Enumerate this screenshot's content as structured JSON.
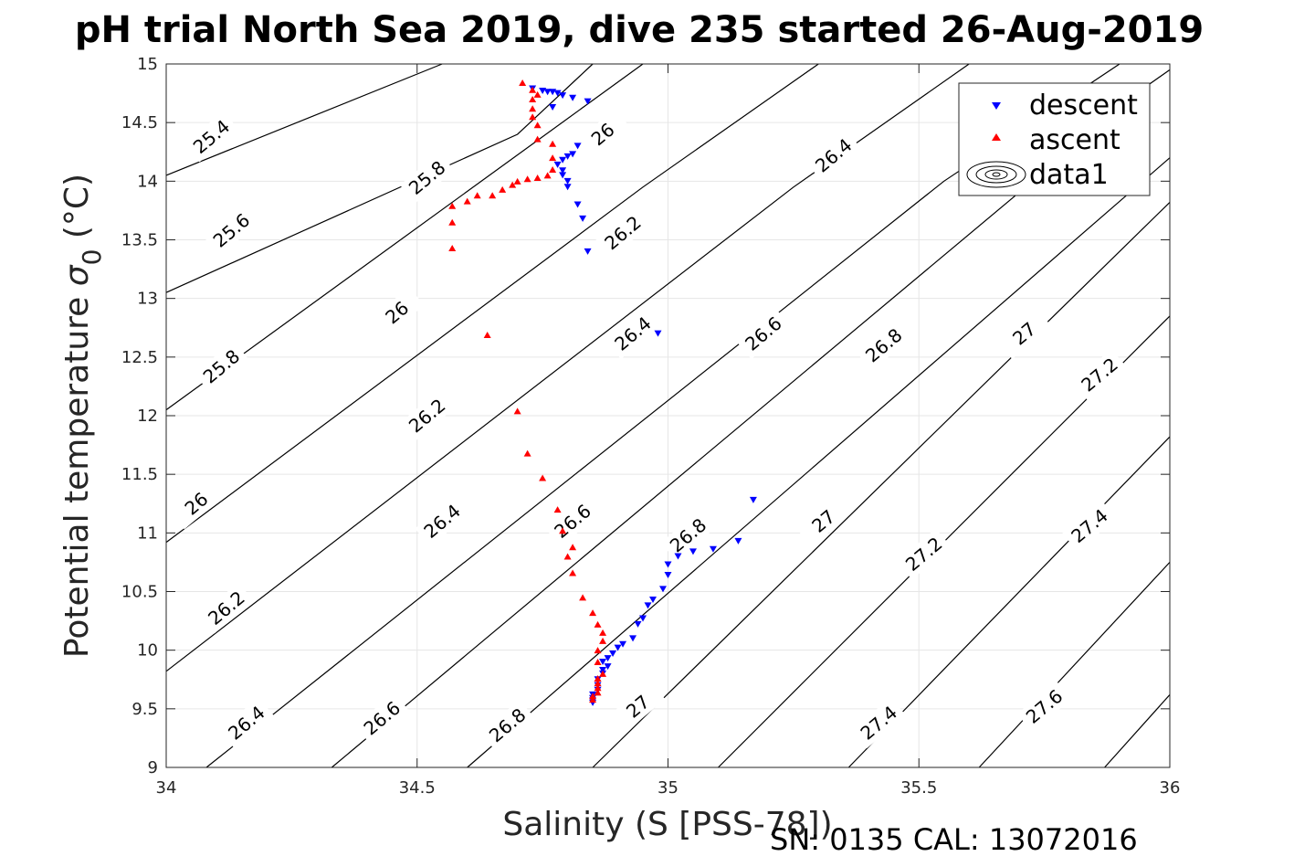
{
  "chart_data": {
    "type": "scatter",
    "title": "pH trial North Sea 2019, dive 235 started 26-Aug-2019",
    "xlabel": "Salinity (S [PSS-78])",
    "ylabel_prefix": "Potential temperature ",
    "ylabel_symbol": "σ",
    "ylabel_sub": "0",
    "ylabel_suffix": " (°C)",
    "footer": "SN: 0135  CAL: 13072016",
    "xlim": [
      34,
      36
    ],
    "ylim": [
      9,
      15
    ],
    "xticks": [
      34,
      34.5,
      35,
      35.5,
      36
    ],
    "xtick_labels": [
      "34",
      "34.5",
      "35",
      "35.5",
      "36"
    ],
    "yticks": [
      9,
      9.5,
      10,
      10.5,
      11,
      11.5,
      12,
      12.5,
      13,
      13.5,
      14,
      14.5,
      15
    ],
    "ytick_labels": [
      "9",
      "9.5",
      "10",
      "10.5",
      "11",
      "11.5",
      "12",
      "12.5",
      "13",
      "13.5",
      "14",
      "14.5",
      "15"
    ],
    "grid": true,
    "legend_position": "top-right",
    "legend": [
      {
        "label": "descent",
        "marker": "triangle-down",
        "color": "#0000ff"
      },
      {
        "label": "ascent",
        "marker": "triangle-up",
        "color": "#ff0000"
      },
      {
        "label": "data1",
        "marker": "contour",
        "color": "#000000"
      }
    ],
    "contours": {
      "color": "#000000",
      "lines": [
        {
          "level": "25.4",
          "points": [
            [
              34,
              14.05
            ],
            [
              34.55,
              15
            ]
          ]
        },
        {
          "level": "25.6",
          "points": [
            [
              34,
              13.05
            ],
            [
              34.7,
              14.4
            ],
            [
              34.85,
              15
            ]
          ]
        },
        {
          "level": "25.8",
          "points": [
            [
              34,
              12.05
            ],
            [
              34.95,
              15
            ]
          ]
        },
        {
          "level": "26",
          "points": [
            [
              34,
              10.92
            ],
            [
              34.95,
              13.95
            ],
            [
              35.3,
              15
            ]
          ]
        },
        {
          "level": "26.2",
          "points": [
            [
              34,
              9.82
            ],
            [
              35.25,
              13.95
            ],
            [
              35.6,
              15
            ]
          ]
        },
        {
          "level": "26.4",
          "points": [
            [
              34.08,
              9
            ],
            [
              35.55,
              14
            ],
            [
              35.9,
              15
            ]
          ]
        },
        {
          "level": "26.6",
          "points": [
            [
              34.33,
              9
            ],
            [
              35.95,
              14.8
            ],
            [
              36,
              14.95
            ]
          ]
        },
        {
          "level": "26.8",
          "points": [
            [
              34.6,
              9
            ],
            [
              36,
              14.2
            ]
          ]
        },
        {
          "level": "27",
          "points": [
            [
              34.85,
              9
            ],
            [
              36,
              13.82
            ]
          ]
        },
        {
          "level": "27.2",
          "points": [
            [
              35.1,
              9
            ],
            [
              36,
              12.85
            ]
          ]
        },
        {
          "level": "27.4",
          "points": [
            [
              35.36,
              9
            ],
            [
              36,
              11.82
            ]
          ]
        },
        {
          "level": "27.6",
          "points": [
            [
              35.62,
              9
            ],
            [
              36,
              10.75
            ]
          ]
        },
        {
          "level": "27.8",
          "points": [
            [
              35.87,
              9
            ],
            [
              36,
              9.62
            ]
          ]
        }
      ],
      "labels": [
        {
          "text": "25.4",
          "x": 34.09,
          "y": 14.38
        },
        {
          "text": "25.6",
          "x": 34.13,
          "y": 13.58
        },
        {
          "text": "25.8",
          "x": 34.52,
          "y": 14.03
        },
        {
          "text": "25.8",
          "x": 34.11,
          "y": 12.42
        },
        {
          "text": "26",
          "x": 34.87,
          "y": 14.4
        },
        {
          "text": "26",
          "x": 34.46,
          "y": 12.88
        },
        {
          "text": "26",
          "x": 34.06,
          "y": 11.25
        },
        {
          "text": "26.2",
          "x": 34.91,
          "y": 13.56
        },
        {
          "text": "26.2",
          "x": 34.52,
          "y": 12.0
        },
        {
          "text": "26.2",
          "x": 34.12,
          "y": 10.36
        },
        {
          "text": "26.4",
          "x": 35.33,
          "y": 14.22
        },
        {
          "text": "26.4",
          "x": 34.93,
          "y": 12.7
        },
        {
          "text": "26.4",
          "x": 34.55,
          "y": 11.1
        },
        {
          "text": "26.4",
          "x": 34.16,
          "y": 9.38
        },
        {
          "text": "26.6",
          "x": 35.19,
          "y": 12.7
        },
        {
          "text": "26.6",
          "x": 34.81,
          "y": 11.1
        },
        {
          "text": "26.6",
          "x": 34.43,
          "y": 9.42
        },
        {
          "text": "26.8",
          "x": 35.43,
          "y": 12.6
        },
        {
          "text": "26.8",
          "x": 35.04,
          "y": 10.98
        },
        {
          "text": "26.8",
          "x": 34.68,
          "y": 9.36
        },
        {
          "text": "27",
          "x": 35.71,
          "y": 12.7
        },
        {
          "text": "27",
          "x": 35.31,
          "y": 11.1
        },
        {
          "text": "27",
          "x": 34.94,
          "y": 9.52
        },
        {
          "text": "27.2",
          "x": 35.86,
          "y": 12.35
        },
        {
          "text": "27.2",
          "x": 35.51,
          "y": 10.82
        },
        {
          "text": "27.4",
          "x": 35.84,
          "y": 11.06
        },
        {
          "text": "27.4",
          "x": 35.42,
          "y": 9.38
        },
        {
          "text": "27.6",
          "x": 35.75,
          "y": 9.52
        }
      ]
    },
    "series": [
      {
        "name": "descent",
        "marker": "triangle-down",
        "color": "#0000ff",
        "points": [
          [
            34.73,
            14.79
          ],
          [
            34.75,
            14.77
          ],
          [
            34.76,
            14.76
          ],
          [
            34.77,
            14.76
          ],
          [
            34.78,
            14.75
          ],
          [
            34.79,
            14.73
          ],
          [
            34.81,
            14.71
          ],
          [
            34.84,
            14.68
          ],
          [
            34.77,
            14.63
          ],
          [
            34.82,
            14.3
          ],
          [
            34.81,
            14.23
          ],
          [
            34.8,
            14.21
          ],
          [
            34.79,
            14.18
          ],
          [
            34.78,
            14.14
          ],
          [
            34.79,
            14.09
          ],
          [
            34.79,
            14.05
          ],
          [
            34.8,
            14.0
          ],
          [
            34.8,
            13.95
          ],
          [
            34.82,
            13.8
          ],
          [
            34.83,
            13.68
          ],
          [
            34.84,
            13.4
          ],
          [
            34.98,
            12.7
          ],
          [
            35.17,
            11.28
          ],
          [
            35.14,
            10.93
          ],
          [
            35.09,
            10.86
          ],
          [
            35.05,
            10.84
          ],
          [
            35.02,
            10.8
          ],
          [
            35.0,
            10.73
          ],
          [
            35.0,
            10.64
          ],
          [
            34.99,
            10.52
          ],
          [
            34.97,
            10.43
          ],
          [
            34.96,
            10.38
          ],
          [
            34.95,
            10.27
          ],
          [
            34.94,
            10.22
          ],
          [
            34.93,
            10.1
          ],
          [
            34.91,
            10.05
          ],
          [
            34.9,
            10.02
          ],
          [
            34.89,
            9.97
          ],
          [
            34.88,
            9.93
          ],
          [
            34.87,
            9.9
          ],
          [
            34.88,
            9.86
          ],
          [
            34.87,
            9.83
          ],
          [
            34.87,
            9.8
          ],
          [
            34.86,
            9.75
          ],
          [
            34.86,
            9.7
          ],
          [
            34.86,
            9.66
          ],
          [
            34.85,
            9.62
          ],
          [
            34.85,
            9.59
          ],
          [
            34.85,
            9.57
          ],
          [
            34.85,
            9.55
          ]
        ]
      },
      {
        "name": "ascent",
        "marker": "triangle-up",
        "color": "#ff0000",
        "points": [
          [
            34.85,
            9.58
          ],
          [
            34.85,
            9.61
          ],
          [
            34.86,
            9.64
          ],
          [
            34.86,
            9.68
          ],
          [
            34.86,
            9.72
          ],
          [
            34.86,
            9.76
          ],
          [
            34.87,
            9.8
          ],
          [
            34.86,
            9.9
          ],
          [
            34.86,
            10.0
          ],
          [
            34.87,
            10.08
          ],
          [
            34.87,
            10.15
          ],
          [
            34.86,
            10.22
          ],
          [
            34.85,
            10.32
          ],
          [
            34.83,
            10.45
          ],
          [
            34.81,
            10.66
          ],
          [
            34.8,
            10.8
          ],
          [
            34.81,
            10.88
          ],
          [
            34.79,
            11.02
          ],
          [
            34.78,
            11.2
          ],
          [
            34.75,
            11.47
          ],
          [
            34.72,
            11.68
          ],
          [
            34.7,
            12.04
          ],
          [
            34.64,
            12.69
          ],
          [
            34.57,
            13.43
          ],
          [
            34.57,
            13.65
          ],
          [
            34.57,
            13.79
          ],
          [
            34.6,
            13.83
          ],
          [
            34.62,
            13.88
          ],
          [
            34.65,
            13.88
          ],
          [
            34.67,
            13.93
          ],
          [
            34.69,
            13.97
          ],
          [
            34.7,
            14.0
          ],
          [
            34.72,
            14.02
          ],
          [
            34.74,
            14.03
          ],
          [
            34.76,
            14.05
          ],
          [
            34.77,
            14.1
          ],
          [
            34.77,
            14.2
          ],
          [
            34.77,
            14.32
          ],
          [
            34.74,
            14.36
          ],
          [
            34.74,
            14.48
          ],
          [
            34.73,
            14.55
          ],
          [
            34.73,
            14.62
          ],
          [
            34.73,
            14.7
          ],
          [
            34.74,
            14.74
          ],
          [
            34.73,
            14.78
          ],
          [
            34.71,
            14.84
          ]
        ]
      }
    ]
  }
}
